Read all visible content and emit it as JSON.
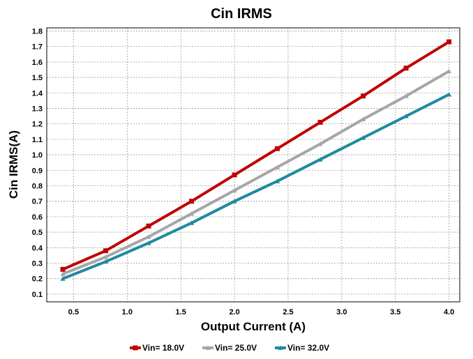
{
  "chart_data": {
    "type": "line",
    "title": "Cin IRMS",
    "xlabel": "Output Current (A)",
    "ylabel": "Cin IRMS(A)",
    "xlim": [
      0.25,
      4.1
    ],
    "ylim": [
      0.05,
      1.82
    ],
    "xticks": [
      0.5,
      1.0,
      1.5,
      2.0,
      2.5,
      3.0,
      3.5,
      4.0
    ],
    "xtick_labels": [
      "0.5",
      "1.0",
      "1.5",
      "2.0",
      "2.5",
      "3.0",
      "3.5",
      "4.0"
    ],
    "yticks": [
      0.1,
      0.2,
      0.3,
      0.4,
      0.5,
      0.6,
      0.7,
      0.8,
      0.9,
      1.0,
      1.1,
      1.2,
      1.3,
      1.4,
      1.5,
      1.6,
      1.7,
      1.8
    ],
    "ytick_labels": [
      "0.1",
      "0.2",
      "0.3",
      "0.4",
      "0.5",
      "0.6",
      "0.7",
      "0.8",
      "0.9",
      "1.0",
      "1.1",
      "1.2",
      "1.3",
      "1.4",
      "1.5",
      "1.6",
      "1.7",
      "1.8"
    ],
    "grid": true,
    "legend_position": "bottom",
    "x": [
      0.4,
      0.8,
      1.2,
      1.6,
      2.0,
      2.4,
      2.8,
      3.2,
      3.6,
      4.0
    ],
    "series": [
      {
        "name": "Vin= 18.0V",
        "color": "#c00000",
        "marker": "square",
        "values": [
          0.26,
          0.38,
          0.54,
          0.7,
          0.87,
          1.04,
          1.21,
          1.38,
          1.56,
          1.73
        ]
      },
      {
        "name": "Vin= 25.0V",
        "color": "#a6a6a6",
        "marker": "triangle",
        "values": [
          0.23,
          0.34,
          0.47,
          0.62,
          0.77,
          0.92,
          1.07,
          1.23,
          1.38,
          1.54
        ]
      },
      {
        "name": "Vin= 32.0V",
        "color": "#1f8a9e",
        "marker": "triangle",
        "values": [
          0.2,
          0.31,
          0.43,
          0.56,
          0.7,
          0.83,
          0.97,
          1.11,
          1.25,
          1.39
        ]
      }
    ]
  }
}
